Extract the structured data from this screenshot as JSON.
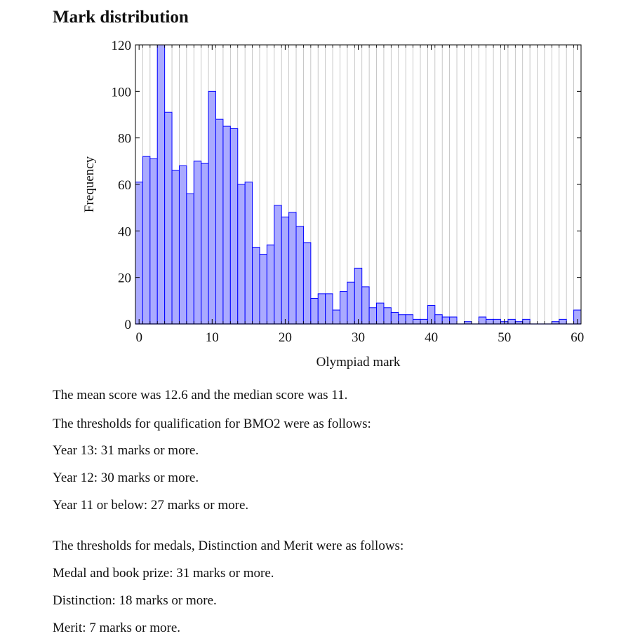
{
  "page_title": "Mark distribution",
  "chart_data": {
    "type": "bar",
    "title": "",
    "xlabel": "Olympiad mark",
    "ylabel": "Frequency",
    "x": [
      0,
      1,
      2,
      3,
      4,
      5,
      6,
      7,
      8,
      9,
      10,
      11,
      12,
      13,
      14,
      15,
      16,
      17,
      18,
      19,
      20,
      21,
      22,
      23,
      24,
      25,
      26,
      27,
      28,
      29,
      30,
      31,
      32,
      33,
      34,
      35,
      36,
      37,
      38,
      39,
      40,
      41,
      42,
      43,
      44,
      45,
      46,
      47,
      48,
      49,
      50,
      51,
      52,
      53,
      54,
      55,
      56,
      57,
      58,
      59,
      60
    ],
    "values": [
      61,
      72,
      71,
      120,
      91,
      66,
      68,
      56,
      70,
      69,
      100,
      88,
      85,
      84,
      60,
      61,
      33,
      30,
      34,
      51,
      46,
      48,
      42,
      35,
      11,
      13,
      13,
      6,
      14,
      18,
      24,
      16,
      7,
      9,
      7,
      5,
      4,
      4,
      2,
      2,
      8,
      4,
      3,
      3,
      0,
      1,
      0,
      3,
      2,
      2,
      1,
      2,
      1,
      2,
      0,
      0,
      0,
      1,
      2,
      0,
      6
    ],
    "xlim": [
      0,
      60
    ],
    "ylim": [
      0,
      120
    ],
    "xticks": [
      0,
      10,
      20,
      30,
      40,
      50,
      60
    ],
    "yticks": [
      0,
      20,
      40,
      60,
      80,
      100,
      120
    ],
    "grid": "vertical",
    "bar_fill": "#aaaaff",
    "bar_stroke": "#0000ff",
    "grid_color": "#bbbbbb"
  },
  "stats_line": "The mean score was 12.6 and the median score was 11.",
  "bmo2_intro": "The thresholds for qualification for BMO2 were as follows:",
  "bmo2_thresholds": [
    "Year 13: 31 marks or more.",
    "Year 12: 30 marks or more.",
    "Year 11 or below: 27 marks or more."
  ],
  "medals_intro": "The thresholds for medals, Distinction and Merit were as follows:",
  "medal_thresholds": [
    "Medal and book prize: 31 marks or more.",
    "Distinction: 18 marks or more.",
    "Merit: 7 marks or more."
  ]
}
